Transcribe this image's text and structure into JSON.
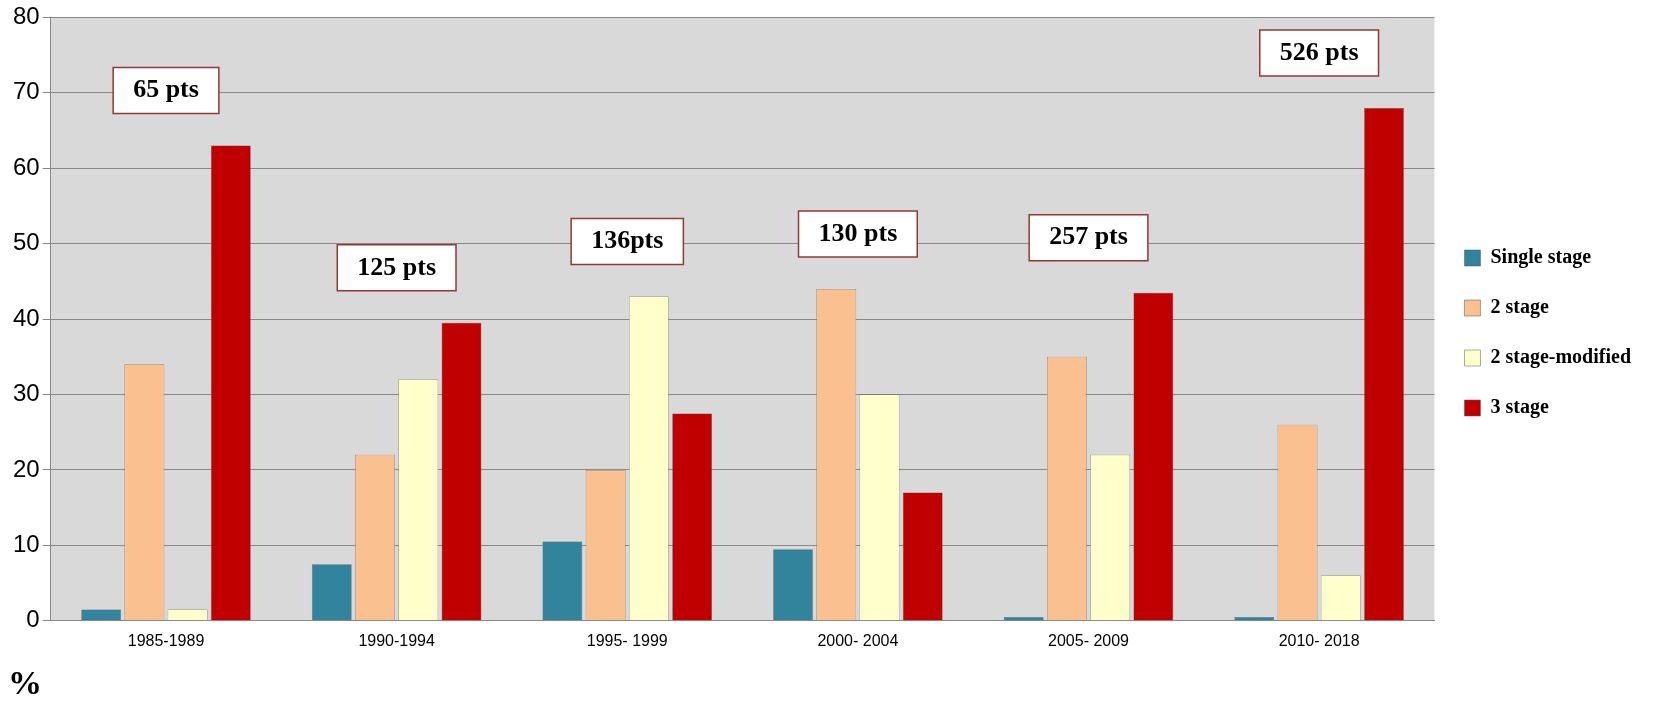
{
  "chart_data": {
    "type": "bar",
    "ylabel": "%",
    "categories": [
      "1985-1989",
      "1990-1994",
      "1995- 1999",
      "2000- 2004",
      "2005- 2009",
      "2010- 2018"
    ],
    "series": [
      {
        "name": "Single stage",
        "color": "#31849b",
        "values": [
          1.5,
          7.5,
          10.5,
          9.5,
          0.5,
          0.5
        ]
      },
      {
        "name": "2 stage",
        "color": "#fac090",
        "values": [
          34,
          22,
          20,
          44,
          35,
          26
        ]
      },
      {
        "name": "2 stage-modified",
        "color": "#ffffcc",
        "values": [
          1.5,
          32,
          43,
          30,
          22,
          6
        ]
      },
      {
        "name": "3 stage",
        "color": "#c00000",
        "values": [
          63,
          39.5,
          27.5,
          17,
          43.5,
          68
        ]
      }
    ],
    "ylim": [
      0,
      80
    ],
    "yticks": [
      0,
      10,
      20,
      30,
      40,
      50,
      60,
      70,
      80
    ],
    "grid": "y",
    "legend": "right",
    "annotations": [
      "65 pts",
      "125 pts",
      "136pts",
      "130 pts",
      "257 pts",
      "526 pts"
    ]
  }
}
